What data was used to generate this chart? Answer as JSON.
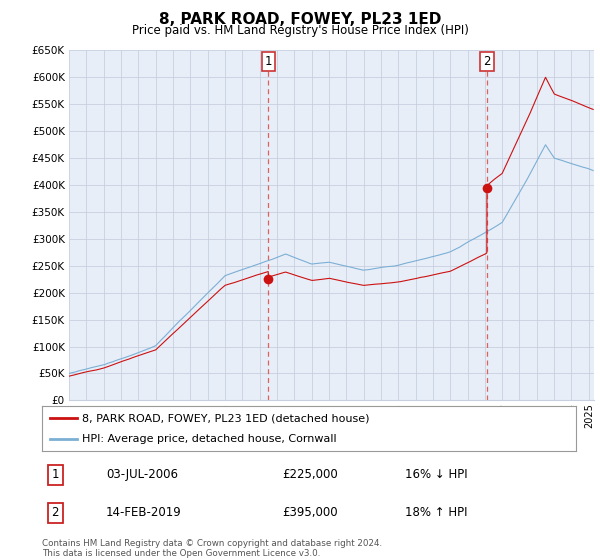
{
  "title": "8, PARK ROAD, FOWEY, PL23 1ED",
  "subtitle": "Price paid vs. HM Land Registry's House Price Index (HPI)",
  "ylim": [
    0,
    650000
  ],
  "yticks": [
    0,
    50000,
    100000,
    150000,
    200000,
    250000,
    300000,
    350000,
    400000,
    450000,
    500000,
    550000,
    600000,
    650000
  ],
  "xlim_start": 1995.0,
  "xlim_end": 2025.3,
  "hpi_color": "#7bafd4",
  "price_color": "#cc1111",
  "vline_color": "#e06060",
  "background_color": "#e8eef8",
  "grid_color": "#c8d0e0",
  "transaction1_x": 2006.5,
  "transaction1_y": 225000,
  "transaction1_label": "1",
  "transaction2_x": 2019.12,
  "transaction2_y": 395000,
  "transaction2_label": "2",
  "legend_line1": "8, PARK ROAD, FOWEY, PL23 1ED (detached house)",
  "legend_line2": "HPI: Average price, detached house, Cornwall",
  "table_row1": [
    "1",
    "03-JUL-2006",
    "£225,000",
    "16% ↓ HPI"
  ],
  "table_row2": [
    "2",
    "14-FEB-2019",
    "£395,000",
    "18% ↑ HPI"
  ],
  "footnote": "Contains HM Land Registry data © Crown copyright and database right 2024.\nThis data is licensed under the Open Government Licence v3.0."
}
